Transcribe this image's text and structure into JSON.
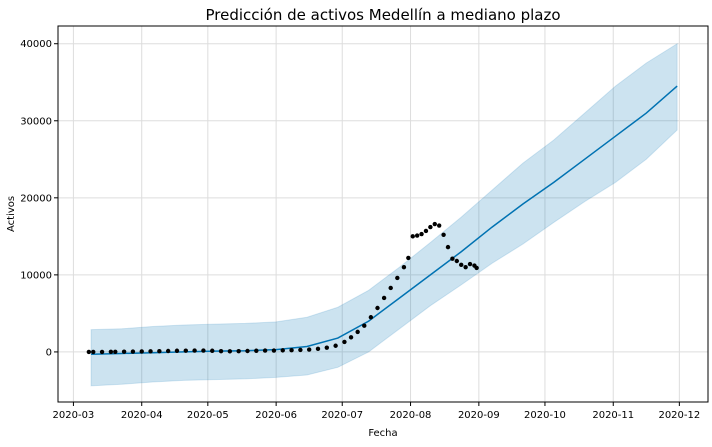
{
  "chart_data": {
    "type": "line",
    "title": "Predicción de activos Medellín a mediano plazo",
    "xlabel": "Fecha",
    "ylabel": "Activos",
    "xlim": [
      "2020-02-23",
      "2020-12-14"
    ],
    "xticks": [
      {
        "value": "2020-03-01",
        "label": "2020-03"
      },
      {
        "value": "2020-04-01",
        "label": "2020-04"
      },
      {
        "value": "2020-05-01",
        "label": "2020-05"
      },
      {
        "value": "2020-06-01",
        "label": "2020-06"
      },
      {
        "value": "2020-07-01",
        "label": "2020-07"
      },
      {
        "value": "2020-08-01",
        "label": "2020-08"
      },
      {
        "value": "2020-09-01",
        "label": "2020-09"
      },
      {
        "value": "2020-10-01",
        "label": "2020-10"
      },
      {
        "value": "2020-11-01",
        "label": "2020-11"
      },
      {
        "value": "2020-12-01",
        "label": "2020-12"
      }
    ],
    "ylim": [
      -6500,
      42300
    ],
    "yticks": [
      0,
      10000,
      20000,
      30000,
      40000
    ],
    "grid": true,
    "forecast": {
      "color": "#0072b2",
      "band_color": "#0072b2",
      "x": [
        "2020-03-09",
        "2020-03-23",
        "2020-04-06",
        "2020-04-20",
        "2020-05-04",
        "2020-05-18",
        "2020-06-01",
        "2020-06-15",
        "2020-06-29",
        "2020-07-13",
        "2020-07-27",
        "2020-08-10",
        "2020-08-24",
        "2020-09-07",
        "2020-09-21",
        "2020-10-05",
        "2020-10-19",
        "2020-11-02",
        "2020-11-16",
        "2020-11-30"
      ],
      "values": [
        -300,
        -200,
        -100,
        0,
        100,
        150,
        300,
        700,
        1800,
        4000,
        7000,
        10000,
        13000,
        16200,
        19200,
        22000,
        25000,
        28000,
        31000,
        34500
      ],
      "upper": [
        2900,
        3000,
        3300,
        3500,
        3600,
        3700,
        3900,
        4500,
        5800,
        8000,
        11000,
        14200,
        17500,
        21000,
        24500,
        27500,
        31000,
        34500,
        37500,
        40000
      ],
      "lower": [
        -4400,
        -4200,
        -3900,
        -3700,
        -3600,
        -3500,
        -3300,
        -3000,
        -2000,
        0,
        3000,
        6000,
        8700,
        11500,
        14000,
        16800,
        19500,
        22000,
        25000,
        28800
      ]
    },
    "observed": {
      "color": "#000000",
      "x": [
        "2020-03-08",
        "2020-03-10",
        "2020-03-14",
        "2020-03-18",
        "2020-03-20",
        "2020-03-24",
        "2020-03-28",
        "2020-04-01",
        "2020-04-05",
        "2020-04-09",
        "2020-04-13",
        "2020-04-17",
        "2020-04-21",
        "2020-04-25",
        "2020-04-29",
        "2020-05-03",
        "2020-05-07",
        "2020-05-11",
        "2020-05-15",
        "2020-05-19",
        "2020-05-23",
        "2020-05-27",
        "2020-05-31",
        "2020-06-04",
        "2020-06-08",
        "2020-06-12",
        "2020-06-16",
        "2020-06-20",
        "2020-06-24",
        "2020-06-28",
        "2020-07-02",
        "2020-07-05",
        "2020-07-08",
        "2020-07-11",
        "2020-07-14",
        "2020-07-17",
        "2020-07-20",
        "2020-07-23",
        "2020-07-26",
        "2020-07-29",
        "2020-07-31",
        "2020-08-02",
        "2020-08-04",
        "2020-08-06",
        "2020-08-08",
        "2020-08-10",
        "2020-08-12",
        "2020-08-14",
        "2020-08-16",
        "2020-08-18",
        "2020-08-20",
        "2020-08-22",
        "2020-08-24",
        "2020-08-26",
        "2020-08-28",
        "2020-08-30",
        "2020-08-31"
      ],
      "values": [
        0,
        0,
        0,
        20,
        20,
        30,
        50,
        60,
        80,
        100,
        120,
        150,
        160,
        170,
        180,
        150,
        100,
        80,
        100,
        120,
        150,
        170,
        180,
        200,
        220,
        260,
        300,
        400,
        550,
        800,
        1300,
        1900,
        2600,
        3400,
        4500,
        5700,
        7000,
        8300,
        9600,
        11000,
        12200,
        15000,
        15100,
        15300,
        15700,
        16200,
        16600,
        16400,
        15200,
        13600,
        12100,
        11800,
        11300,
        11000,
        11400,
        11200,
        10900
      ]
    }
  }
}
